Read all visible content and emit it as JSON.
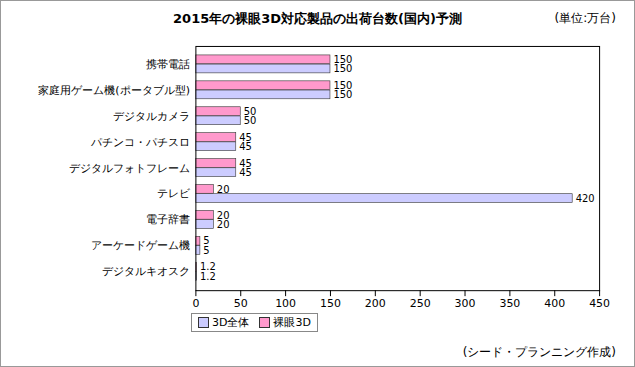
{
  "chart_data": {
    "type": "bar",
    "orientation": "horizontal",
    "title": "2015年の裸眼3D対応製品の出荷台数(国内)予測",
    "subtitle": "(単位:万台)",
    "annotations": [
      "(シード・プランニング作成)"
    ],
    "categories": [
      "携帯電話",
      "家庭用ゲーム機(ポータブル型)",
      "デジタルカメラ",
      "パチンコ・パチスロ",
      "デジタルフォトフレーム",
      "テレビ",
      "電子辞書",
      "アーケードゲーム機",
      "デジタルキオスク"
    ],
    "series": [
      {
        "name": "3D全体",
        "color": "#ccccff",
        "values": [
          150,
          150,
          50,
          45,
          45,
          420,
          20,
          5,
          1.2
        ]
      },
      {
        "name": "裸眼3D",
        "color": "#ff99cc",
        "values": [
          150,
          150,
          50,
          45,
          45,
          20,
          20,
          5,
          1.2
        ]
      }
    ],
    "xlim": [
      0,
      450
    ],
    "xticks": [
      0,
      50,
      100,
      150,
      200,
      250,
      300,
      350,
      400,
      450
    ],
    "grid": false,
    "data_labels": true,
    "legend": "bottom"
  }
}
